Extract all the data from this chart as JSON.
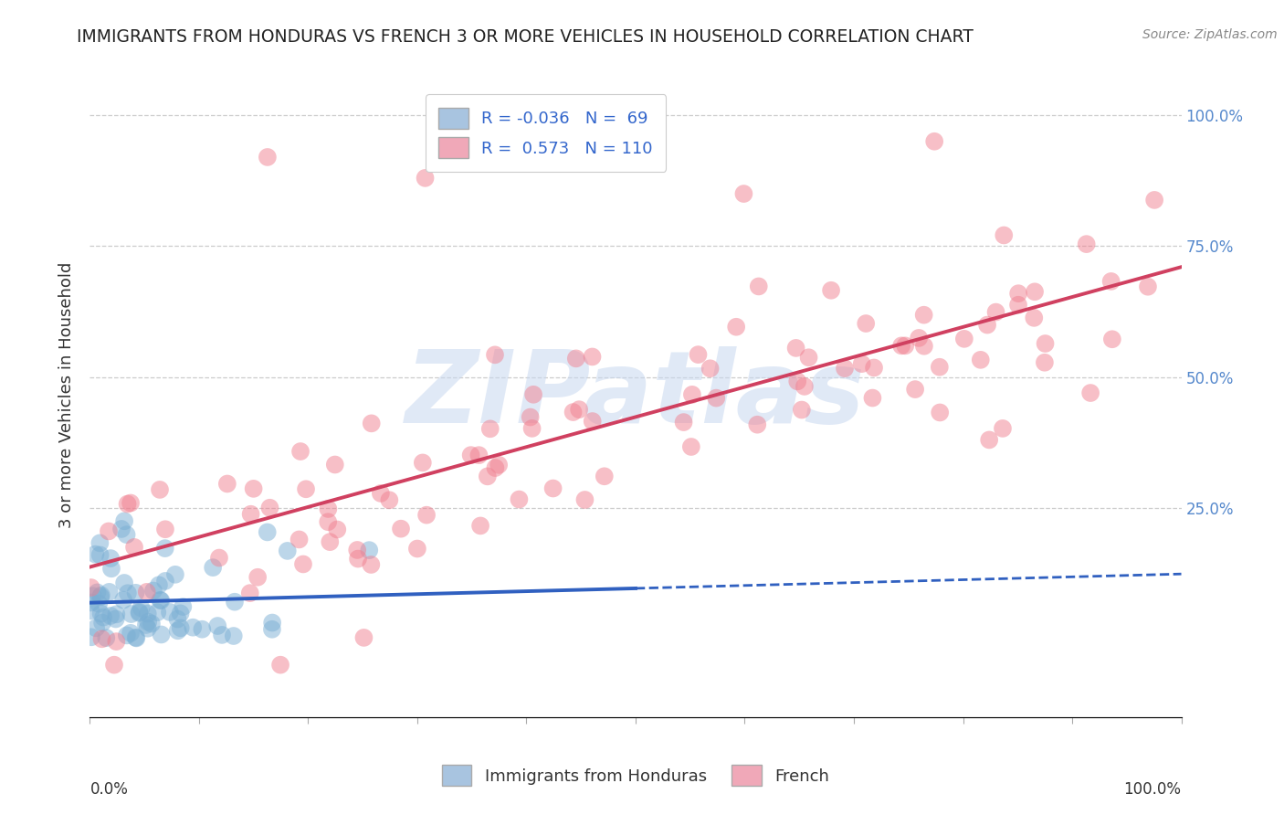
{
  "title": "IMMIGRANTS FROM HONDURAS VS FRENCH 3 OR MORE VEHICLES IN HOUSEHOLD CORRELATION CHART",
  "source": "Source: ZipAtlas.com",
  "ylabel": "3 or more Vehicles in Household",
  "ytick_labels": [
    "100.0%",
    "75.0%",
    "50.0%",
    "25.0%"
  ],
  "ytick_values": [
    1.0,
    0.75,
    0.5,
    0.25
  ],
  "series1_color": "#7bafd4",
  "series2_color": "#f08090",
  "series1_line_color": "#3060c0",
  "series2_line_color": "#d04060",
  "legend_patch1_color": "#a8c4e0",
  "legend_patch2_color": "#f0a8b8",
  "R1": -0.036,
  "N1": 69,
  "R2": 0.573,
  "N2": 110,
  "watermark": "ZIPatlas",
  "watermark_color": "#c8d8f0",
  "background_color": "#ffffff",
  "grid_color": "#cccccc",
  "title_color": "#222222",
  "source_color": "#888888",
  "label_color": "#333333",
  "right_tick_color": "#5588cc",
  "legend_text_color": "#3366cc"
}
